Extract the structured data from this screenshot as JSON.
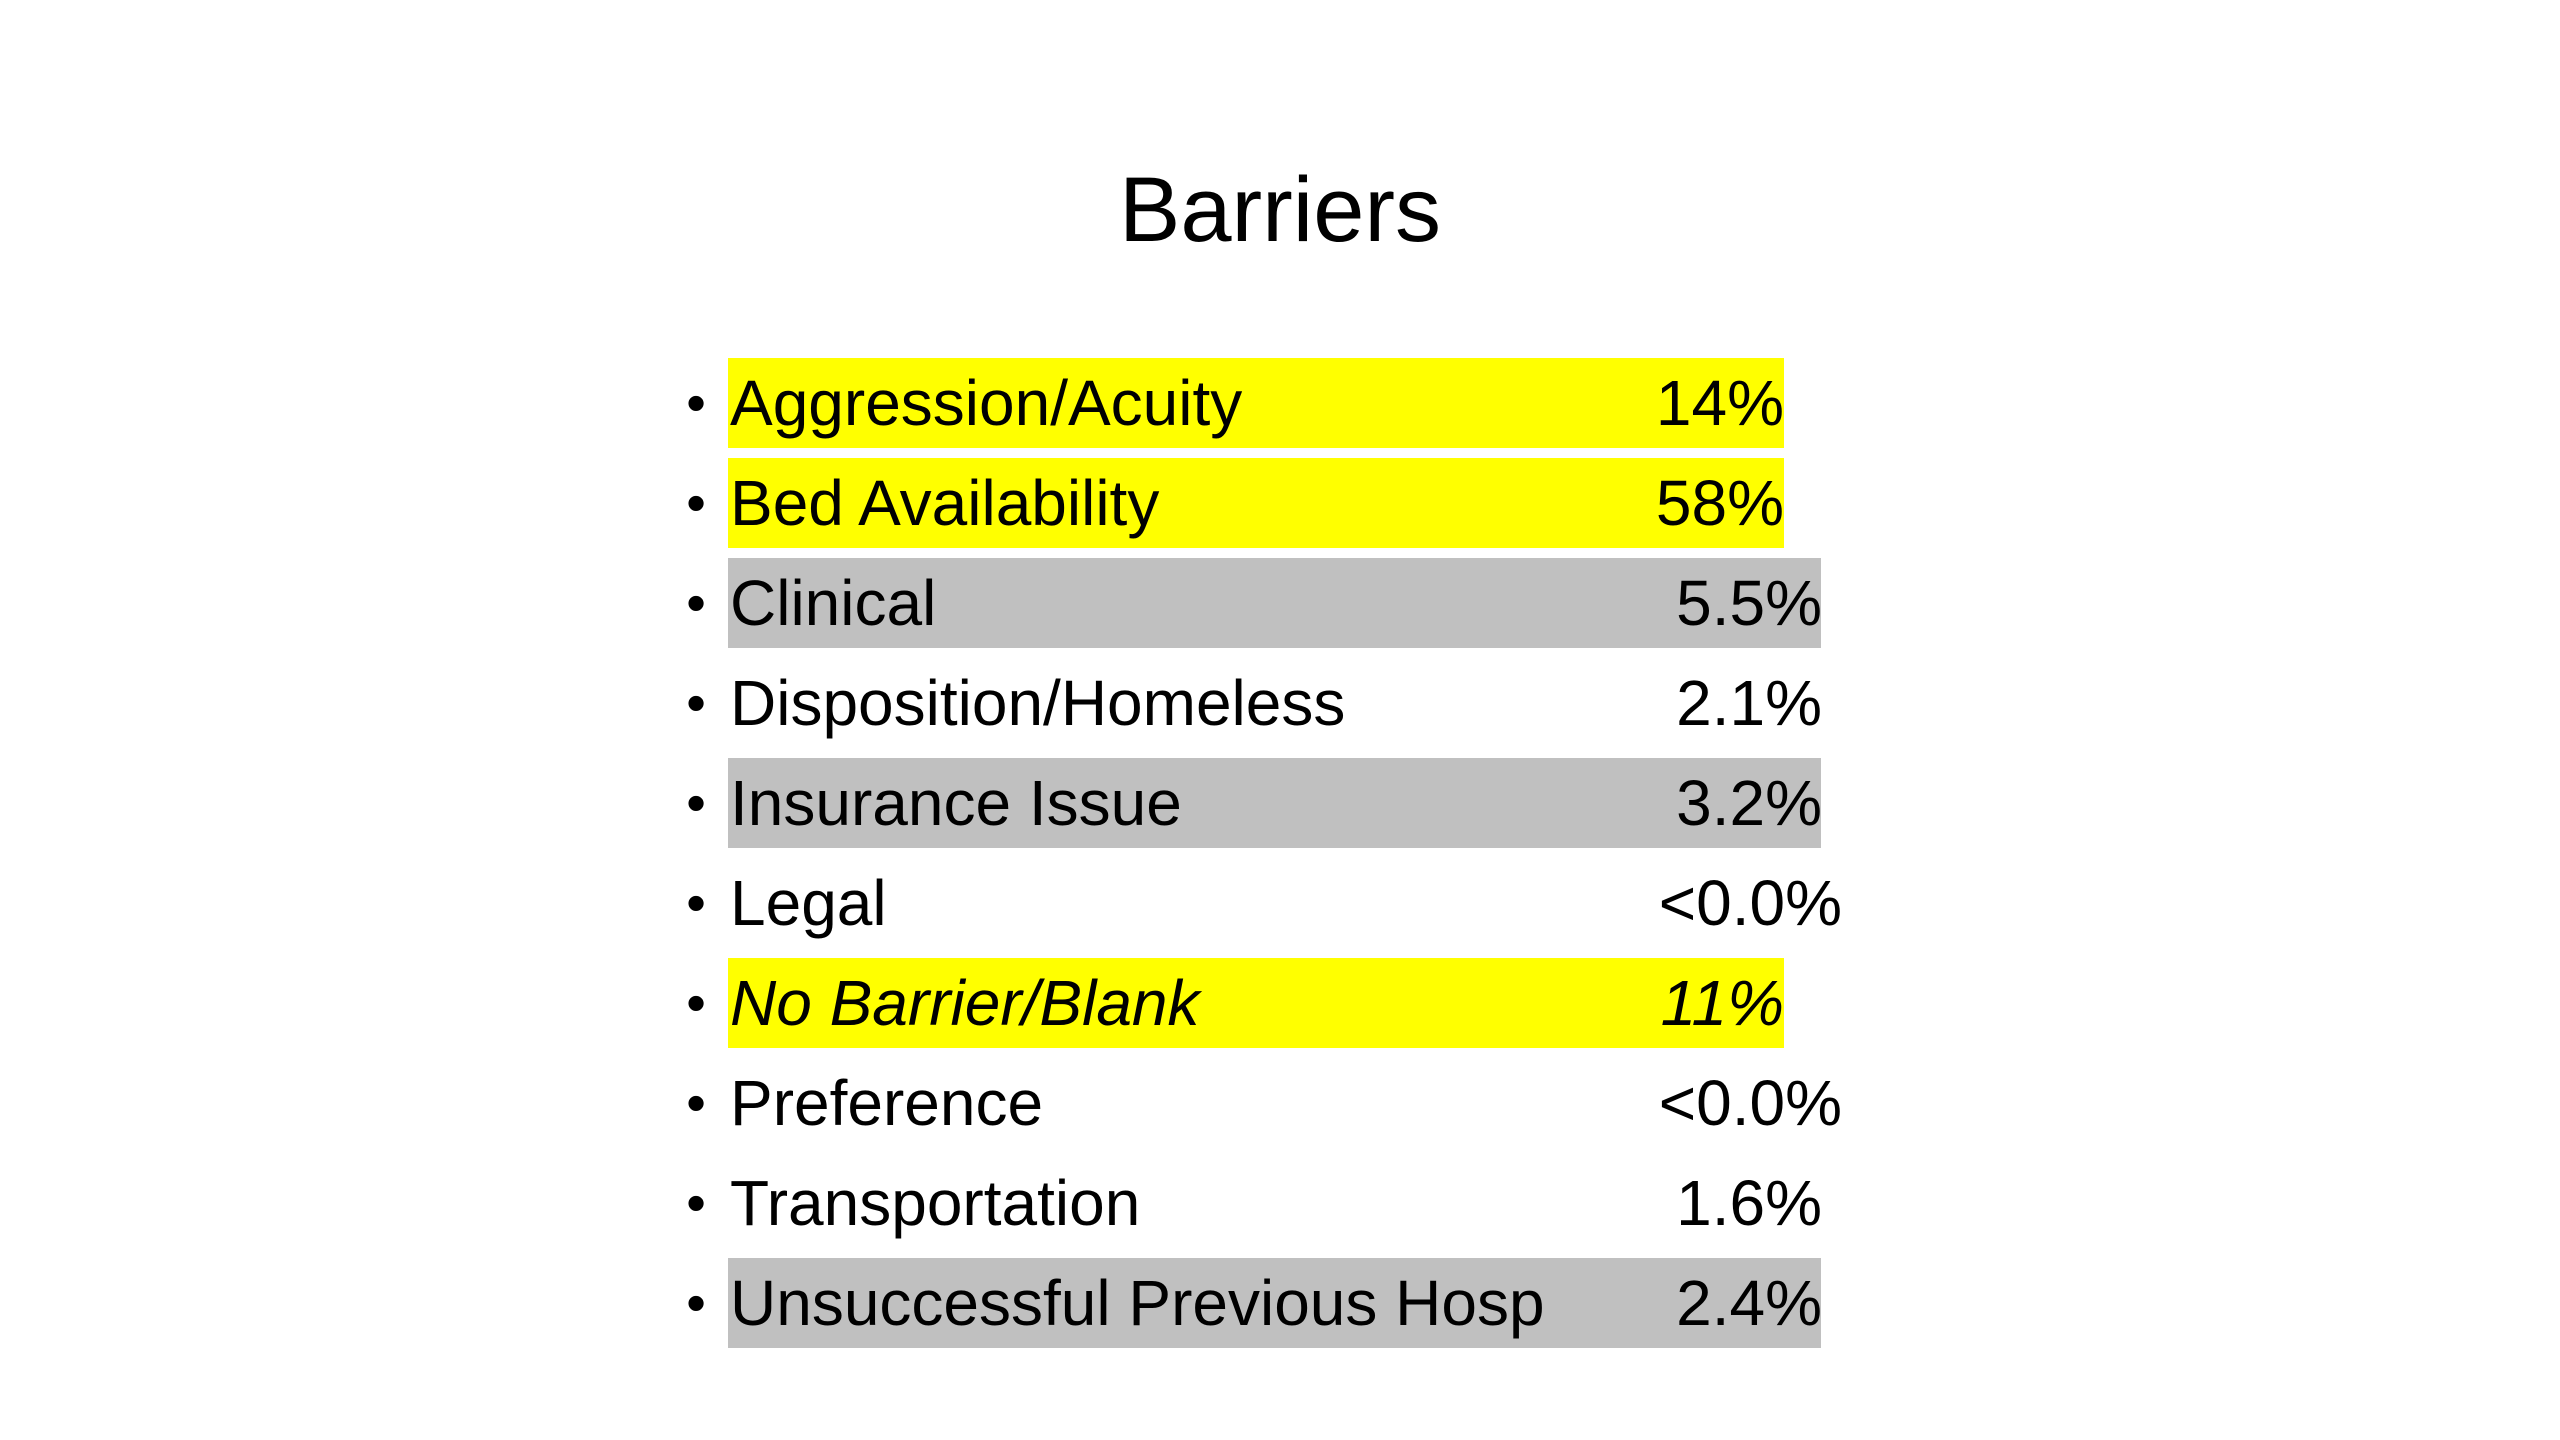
{
  "slide": {
    "title": "Barriers",
    "items": [
      {
        "label": "Aggression/Acuity",
        "value": "14%",
        "highlight": "#ffff00"
      },
      {
        "label": "Bed Availability",
        "value": "58%",
        "highlight": "#ffff00"
      },
      {
        "label": "Clinical",
        "value": "5.5%",
        "highlight": "#c0c0c0"
      },
      {
        "label": "Disposition/Homeless",
        "value": "2.1%",
        "highlight": "none"
      },
      {
        "label": "Insurance Issue",
        "value": "3.2%",
        "highlight": "#c0c0c0"
      },
      {
        "label": "Legal",
        "value": "<0.0%",
        "highlight": "none"
      },
      {
        "label": "No Barrier/Blank",
        "value": "11%",
        "highlight": "#ffff00"
      },
      {
        "label": "Preference",
        "value": "<0.0%",
        "highlight": "none"
      },
      {
        "label": "Transportation",
        "value": "1.6%",
        "highlight": "none"
      },
      {
        "label": "Unsuccessful Previous Hosp",
        "value": "2.4%",
        "highlight": "#c0c0c0"
      }
    ],
    "bullet": "•"
  }
}
